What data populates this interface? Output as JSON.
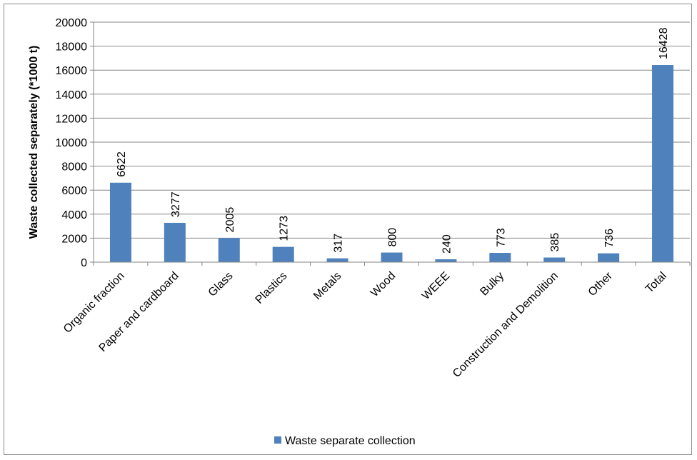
{
  "chart_data": {
    "type": "bar",
    "title": "",
    "xlabel": "",
    "ylabel": "Waste collected separately (*1000 t)",
    "ylim": [
      0,
      20000
    ],
    "yticks": [
      0,
      2000,
      4000,
      6000,
      8000,
      10000,
      12000,
      14000,
      16000,
      18000,
      20000
    ],
    "grid": true,
    "legend_position": "bottom",
    "categories": [
      "Organic fraction",
      "Paper and cardboard",
      "Glass",
      "Plastics",
      "Metals",
      "Wood",
      "WEEE",
      "Bulky",
      "Construction and Demolition",
      "Other",
      "Total"
    ],
    "series": [
      {
        "name": "Waste separate collection",
        "color": "#4f81bd",
        "values": [
          6622,
          3277,
          2005,
          1273,
          317,
          800,
          240,
          773,
          385,
          736,
          16428
        ]
      }
    ]
  }
}
